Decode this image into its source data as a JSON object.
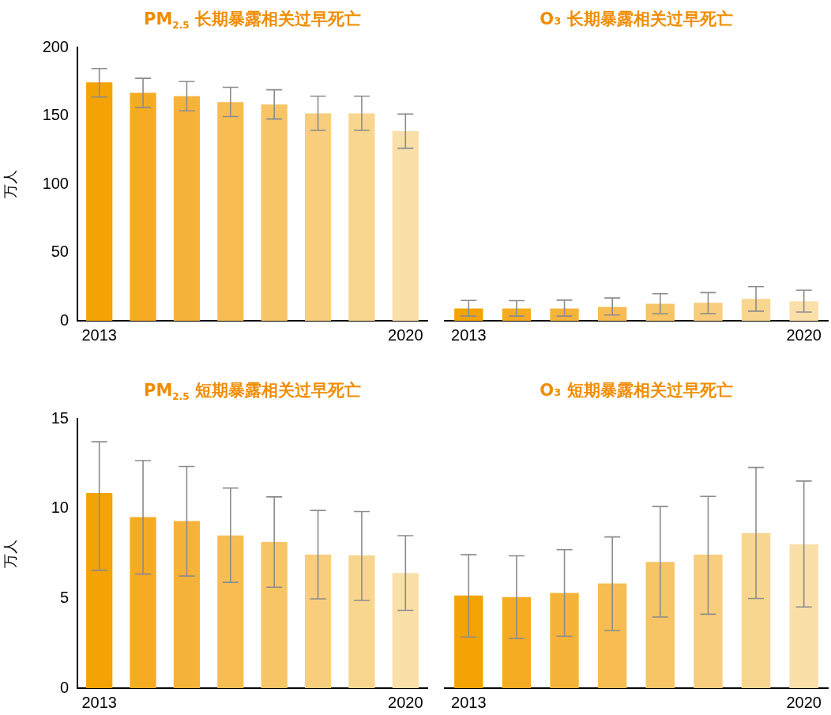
{
  "chart_data": [
    {
      "type": "bar",
      "title": "PM$_{2.5}$ 长期暴露相关过早死亡",
      "ylabel": "万人",
      "categories": [
        "2013",
        null,
        null,
        null,
        null,
        null,
        null,
        "2020"
      ],
      "values": [
        174.4,
        166.7,
        164.3,
        160,
        158.3,
        151.8,
        151.8,
        138.7
      ],
      "colors": [
        "#f4a305",
        "#f5ab22",
        "#f6b33a",
        "#f7bd53",
        "#f7c566",
        "#f8cd7d",
        "#f9d68f",
        "#fadfa9"
      ],
      "errors": [
        [
          163.7,
          184.5
        ],
        [
          156,
          177.4
        ],
        [
          153.6,
          175
        ],
        [
          149.4,
          170.8
        ],
        [
          147.6,
          169
        ],
        [
          139.3,
          164.3
        ],
        [
          139.3,
          164.3
        ],
        [
          126.2,
          151.2
        ]
      ],
      "ylim": [
        0,
        200
      ],
      "yticks": [
        0,
        50,
        100,
        150,
        200
      ],
      "grid": false,
      "legend": false
    },
    {
      "type": "bar",
      "title": "O₃ 长期暴露相关过早死亡",
      "categories": [
        "2013",
        null,
        null,
        null,
        null,
        null,
        null,
        "2020"
      ],
      "values": [
        8.9,
        8.9,
        8.9,
        10.1,
        12.5,
        13.1,
        16.1,
        14.3
      ],
      "colors": [
        "#f4a305",
        "#f5ab22",
        "#f6b33a",
        "#f7bd53",
        "#f7c566",
        "#f8cd7d",
        "#f9d68f",
        "#fadfa9"
      ],
      "errors": [
        [
          3.4,
          14.9
        ],
        [
          3.4,
          14.7
        ],
        [
          3.4,
          15.1
        ],
        [
          4.2,
          16.7
        ],
        [
          5.2,
          19.8
        ],
        [
          5.2,
          20.6
        ],
        [
          7,
          25
        ],
        [
          6.4,
          22.4
        ]
      ],
      "ylim": [
        0,
        200
      ],
      "yticks": [
        0,
        50,
        100,
        150,
        200
      ],
      "tick_labels": "x",
      "grid": false,
      "legend": false
    },
    {
      "type": "bar",
      "title": "PM$_{2.5}$ 短期暴露相关过早死亡",
      "ylabel": "万人",
      "categories": [
        "2013",
        null,
        null,
        null,
        null,
        null,
        null,
        "2020"
      ],
      "values": [
        10.86,
        9.52,
        9.3,
        8.5,
        8.14,
        7.43,
        7.39,
        6.41
      ],
      "colors": [
        "#f4a305",
        "#f5ab22",
        "#f6b33a",
        "#f7bd53",
        "#f7c566",
        "#f8cd7d",
        "#f9d68f",
        "#fadfa9"
      ],
      "errors": [
        [
          6.56,
          13.72
        ],
        [
          6.35,
          12.67
        ],
        [
          6.24,
          12.34
        ],
        [
          5.89,
          11.14
        ],
        [
          5.62,
          10.65
        ],
        [
          4.97,
          9.89
        ],
        [
          4.88,
          9.83
        ],
        [
          4.33,
          8.49
        ]
      ],
      "ylim": [
        0,
        15
      ],
      "yticks": [
        0,
        5,
        10,
        15
      ],
      "grid": false,
      "legend": false
    },
    {
      "type": "bar",
      "title": "O₃ 短期暴露相关过早死亡",
      "categories": [
        "2013",
        null,
        null,
        null,
        null,
        null,
        null,
        "2020"
      ],
      "values": [
        5.16,
        5.07,
        5.3,
        5.83,
        7.03,
        7.43,
        8.63,
        8.01
      ],
      "colors": [
        "#f4a305",
        "#f5ab22",
        "#f6b33a",
        "#f7bd53",
        "#f7c566",
        "#f8cd7d",
        "#f9d68f",
        "#fadfa9"
      ],
      "errors": [
        [
          2.85,
          7.43
        ],
        [
          2.76,
          7.37
        ],
        [
          2.89,
          7.71
        ],
        [
          3.2,
          8.42
        ],
        [
          3.96,
          10.11
        ],
        [
          4.12,
          10.68
        ],
        [
          4.99,
          12.29
        ],
        [
          4.52,
          11.53
        ]
      ],
      "ylim": [
        0,
        15
      ],
      "yticks": [
        0,
        5,
        10,
        15
      ],
      "tick_labels": "x",
      "grid": false,
      "legend": false
    }
  ]
}
